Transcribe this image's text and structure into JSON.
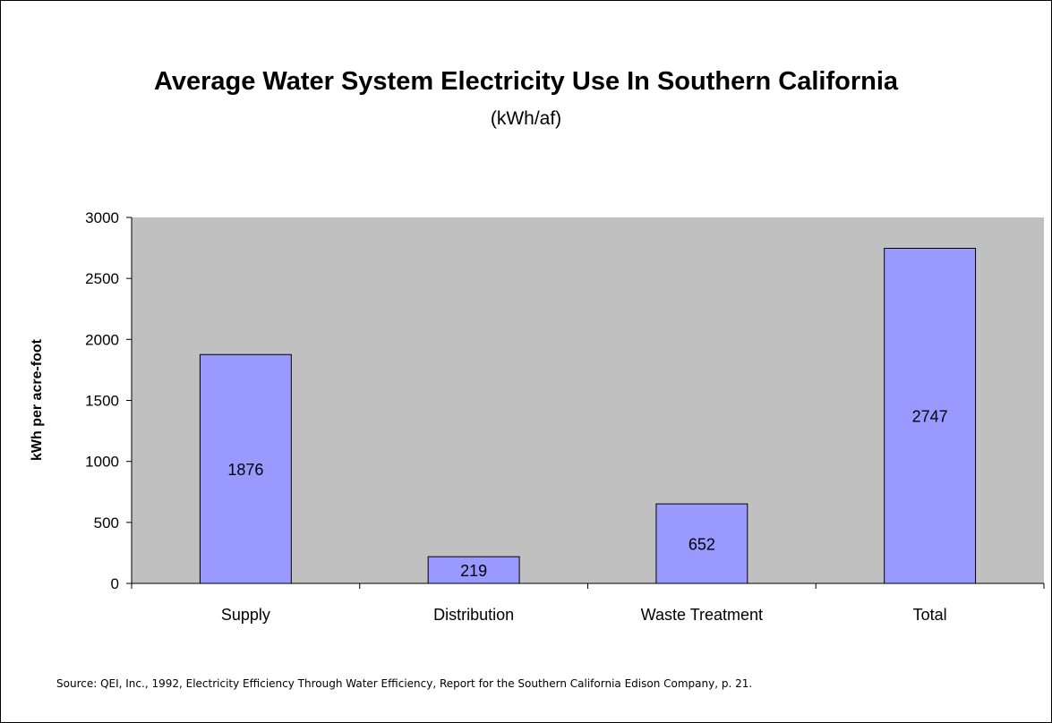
{
  "chart_data": {
    "type": "bar",
    "title": "Average Water System Electricity Use In Southern California",
    "subtitle": "(kWh/af)",
    "xlabel": "",
    "ylabel": "kWh per acre-foot",
    "categories": [
      "Supply",
      "Distribution",
      "Waste Treatment",
      "Total"
    ],
    "values": [
      1876,
      219,
      652,
      2747
    ],
    "data_labels": [
      "1876",
      "219",
      "652",
      "2747"
    ],
    "ylim": [
      0,
      3000
    ],
    "yticks": [
      0,
      500,
      1000,
      1500,
      2000,
      2500,
      3000
    ],
    "grid": false,
    "legend": "none",
    "colors": {
      "bar_fill": "#9999ff",
      "bar_stroke": "#000000",
      "plot_background": "#c0c0c0"
    }
  },
  "footer": {
    "source": "Source: QEI, Inc., 1992, Electricity Efficiency Through Water Efficiency, Report for the Southern California Edison Company, p. 21."
  }
}
